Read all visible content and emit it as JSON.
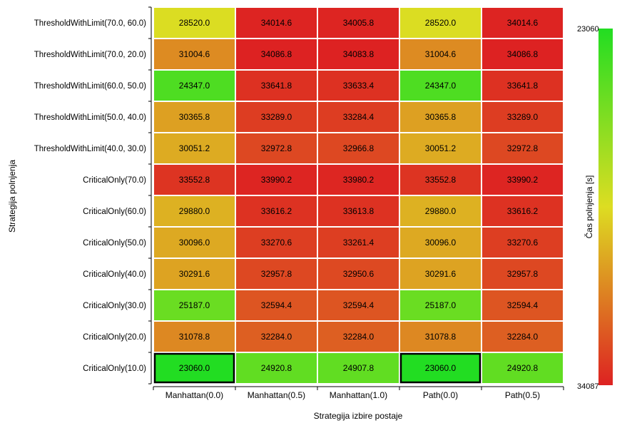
{
  "chart_data": {
    "type": "heatmap",
    "xlabel": "Strategija izbire postaje",
    "ylabel": "Strategija polnjenja",
    "colorbar_label": "Čas polnjenja [s]",
    "colorbar_min": 23060,
    "colorbar_max": 34087,
    "colorbar_min_label": "23060",
    "colorbar_max_label": "34087",
    "colors": {
      "low": "#22dd22",
      "mid": "#dddd22",
      "high": "#dd2222",
      "grid": "#ffffff"
    },
    "x_categories": [
      "Manhattan(0.0)",
      "Manhattan(0.5)",
      "Manhattan(1.0)",
      "Path(0.0)",
      "Path(0.5)"
    ],
    "y_categories": [
      "ThresholdWithLimit(70.0, 60.0)",
      "ThresholdWithLimit(70.0, 20.0)",
      "ThresholdWithLimit(60.0, 50.0)",
      "ThresholdWithLimit(50.0, 40.0)",
      "ThresholdWithLimit(40.0, 30.0)",
      "CriticalOnly(70.0)",
      "CriticalOnly(60.0)",
      "CriticalOnly(50.0)",
      "CriticalOnly(40.0)",
      "CriticalOnly(30.0)",
      "CriticalOnly(20.0)",
      "CriticalOnly(10.0)"
    ],
    "values": [
      [
        28520.0,
        34014.6,
        34005.8,
        28520.0,
        34014.6
      ],
      [
        31004.6,
        34086.8,
        34083.8,
        31004.6,
        34086.8
      ],
      [
        24347.0,
        33641.8,
        33633.4,
        24347.0,
        33641.8
      ],
      [
        30365.8,
        33289.0,
        33284.4,
        30365.8,
        33289.0
      ],
      [
        30051.2,
        32972.8,
        32966.8,
        30051.2,
        32972.8
      ],
      [
        33552.8,
        33990.2,
        33980.2,
        33552.8,
        33990.2
      ],
      [
        29880.0,
        33616.2,
        33613.8,
        29880.0,
        33616.2
      ],
      [
        30096.0,
        33270.6,
        33261.4,
        30096.0,
        33270.6
      ],
      [
        30291.6,
        32957.8,
        32950.6,
        30291.6,
        32957.8
      ],
      [
        25187.0,
        32594.4,
        32594.4,
        25187.0,
        32594.4
      ],
      [
        31078.8,
        32284.0,
        32284.0,
        31078.8,
        32284.0
      ],
      [
        23060.0,
        24920.8,
        24907.8,
        23060.0,
        24920.8
      ]
    ],
    "highlighted_cells": [
      [
        11,
        0
      ],
      [
        11,
        3
      ]
    ]
  }
}
